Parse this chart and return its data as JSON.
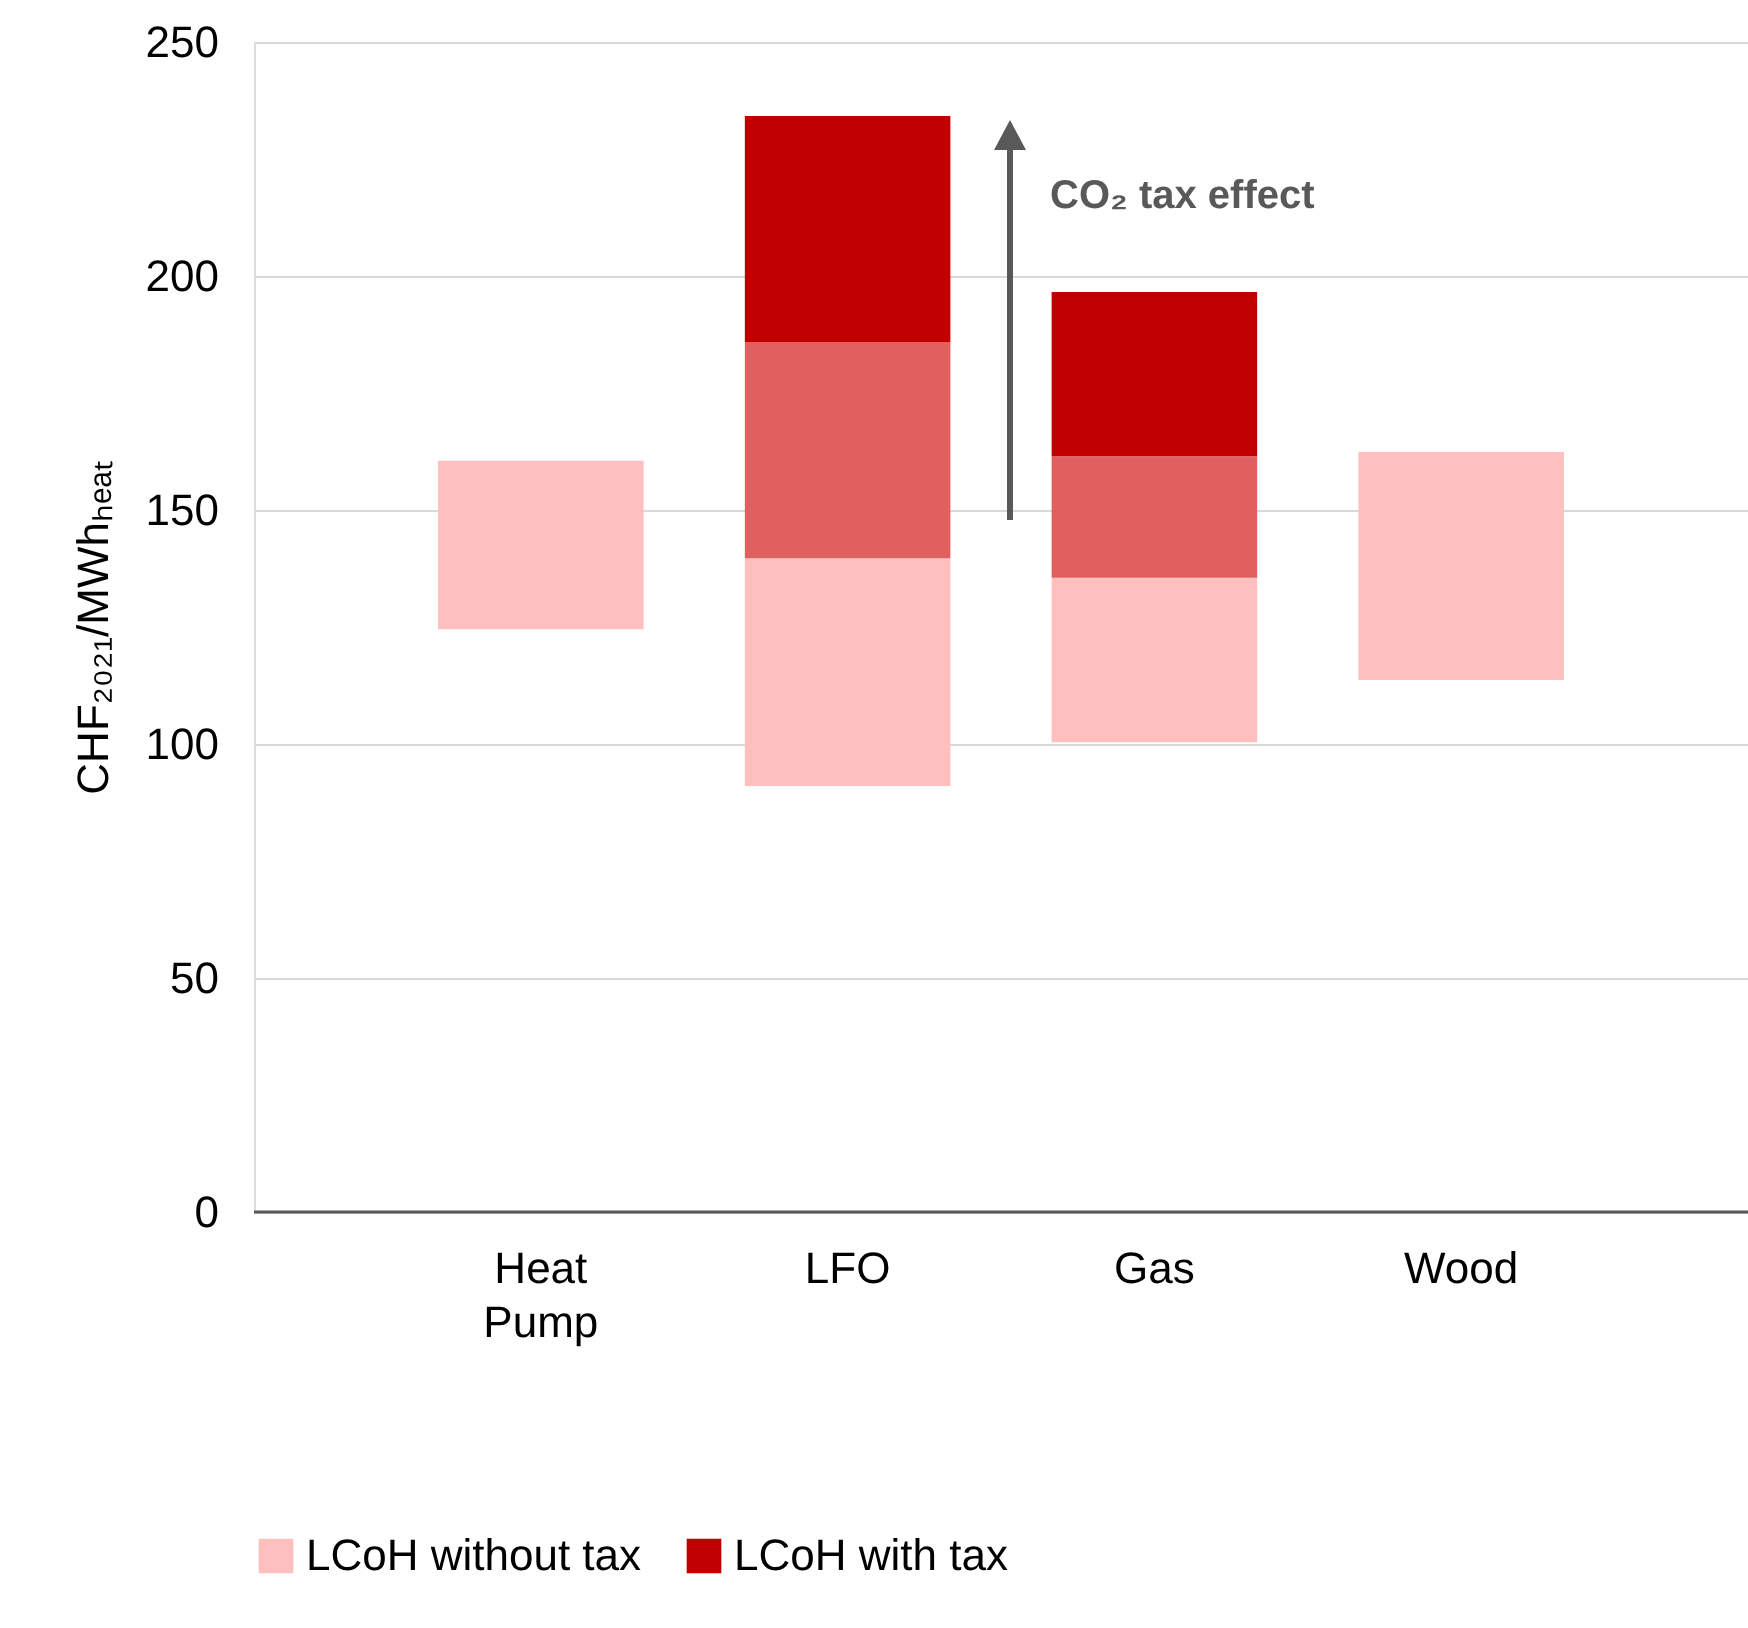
{
  "chart_data": {
    "type": "bar",
    "ylabel": "CHF₂₀₂₁/MWhₕₑₐₜ",
    "categories": [
      "Heat\nPump",
      "LFO",
      "Gas",
      "Wood"
    ],
    "series": [
      {
        "name": "LCoH without tax",
        "color": "#ffbfbf",
        "base": [
          124.5,
          91,
          100.4,
          113.7
        ],
        "values": [
          36,
          48.7,
          35.1,
          48.7
        ]
      },
      {
        "color": "#e06060",
        "base": [
          null,
          139.7,
          135.5,
          null
        ],
        "values": [
          null,
          46.2,
          26,
          null
        ]
      },
      {
        "name": "LCoH with tax",
        "color": "#c00000",
        "base": [
          null,
          185.9,
          161.5,
          null
        ],
        "values": [
          null,
          48.3,
          35.1,
          null
        ]
      }
    ],
    "ylim": [
      0,
      250
    ],
    "yticks": [
      0,
      50,
      100,
      150,
      200,
      250
    ],
    "grid": "y",
    "legend": "bottom",
    "annotations": [
      "CO₂ tax effect"
    ]
  }
}
